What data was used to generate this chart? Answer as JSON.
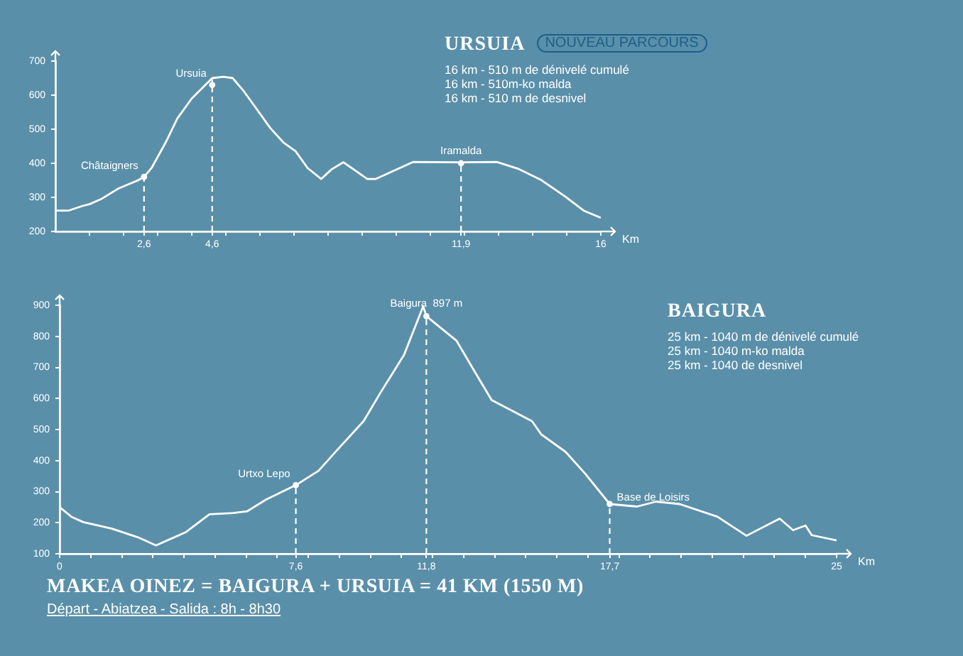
{
  "chart_data": [
    {
      "type": "line",
      "title": "URSUIA",
      "subtitle": "NOUVEAU PARCOURS",
      "xlabel": "Km",
      "annotations": [
        "16 km - 510 m de dénivelé cumulé",
        "16 km - 510m-ko malda",
        "16 km - 510 m de desnivel",
        {
          "text": "Châtaigners",
          "x": 2.6,
          "y": 360
        },
        {
          "text": "Ursuia",
          "x": 4.6,
          "y": 630
        },
        {
          "text": "Iramalda",
          "x": 11.9,
          "y": 400
        }
      ],
      "series": [
        {
          "color": "#ffffff",
          "x": [
            0,
            0.38,
            0.8,
            1.0,
            1.36,
            1.85,
            2.4,
            2.6,
            2.82,
            3.24,
            3.58,
            4.0,
            4.6,
            4.93,
            5.2,
            5.5,
            5.9,
            6.3,
            6.7,
            7.05,
            7.4,
            7.8,
            8.1,
            8.45,
            8.75,
            9.15,
            9.4,
            9.95,
            10.5,
            11.9,
            12.95,
            13.6,
            14.25,
            14.95,
            15.5,
            16
          ],
          "values": [
            261,
            261,
            275,
            280,
            296,
            326,
            349,
            360,
            386,
            462,
            532,
            590,
            650,
            654,
            650,
            615,
            560,
            504,
            460,
            435,
            386,
            354,
            382,
            403,
            382,
            354,
            354,
            379,
            404,
            403,
            404,
            383,
            351,
            303,
            261,
            240
          ]
        }
      ],
      "xlim": [
        0,
        16
      ],
      "ylim": [
        200,
        700
      ],
      "xticks": [
        {
          "value": 1,
          "label": null
        },
        {
          "value": 2,
          "label": null
        },
        {
          "value": 2.6,
          "label": "2,6"
        },
        {
          "value": 3,
          "label": null
        },
        {
          "value": 4,
          "label": null
        },
        {
          "value": 4.6,
          "label": "4,6"
        },
        {
          "value": 5,
          "label": null
        },
        {
          "value": 6,
          "label": null
        },
        {
          "value": 7,
          "label": null
        },
        {
          "value": 8,
          "label": null
        },
        {
          "value": 9,
          "label": null
        },
        {
          "value": 10,
          "label": null
        },
        {
          "value": 11,
          "label": null
        },
        {
          "value": 11.9,
          "label": "11,9"
        },
        {
          "value": 12,
          "label": null
        },
        {
          "value": 13,
          "label": null
        },
        {
          "value": 14,
          "label": null
        },
        {
          "value": 15,
          "label": null
        },
        {
          "value": 16,
          "label": "16"
        }
      ],
      "yticks": [
        200,
        300,
        400,
        500,
        600,
        700
      ],
      "ref_lines": [
        {
          "axis": "x",
          "value": 2.6,
          "line_style": "dashed"
        },
        {
          "axis": "x",
          "value": 4.6,
          "line_style": "dashed"
        },
        {
          "axis": "x",
          "value": 11.9,
          "line_style": "dashed"
        }
      ],
      "marker": "none",
      "grid": false,
      "legend": false
    },
    {
      "type": "line",
      "title": "BAIGURA",
      "xlabel": "Km",
      "annotations": [
        "25 km - 1040 m de dénivelé cumulé",
        "25 km - 1040 m-ko malda",
        "25 km - 1040 de desnivel",
        {
          "text": "Urtxo Lepo",
          "x": 7.6,
          "y": 321
        },
        {
          "text": "Baigura  897 m",
          "x": 11.8,
          "y": 865
        },
        {
          "text": "Base de Loisirs",
          "x": 17.7,
          "y": 260
        }
      ],
      "series": [
        {
          "color": "#ffffff",
          "x": [
            0,
            0.38,
            0.76,
            1.68,
            2.52,
            3.1,
            4.05,
            4.82,
            5.58,
            6.04,
            6.65,
            7.6,
            8.33,
            8.94,
            9.78,
            10.32,
            11.08,
            11.7,
            11.8,
            12.77,
            13.4,
            13.9,
            15.2,
            15.5,
            16.28,
            16.9,
            17.7,
            18.58,
            19.19,
            19.95,
            21.17,
            22.1,
            23.17,
            23.6,
            24.0,
            24.2,
            25
          ],
          "values": [
            250,
            219,
            202,
            181,
            153,
            127,
            169,
            227,
            231,
            237,
            275,
            321,
            367,
            435,
            527,
            618,
            740,
            897,
            865,
            786,
            679,
            595,
            527,
            484,
            428,
            359,
            260,
            252,
            268,
            260,
            219,
            158,
            213,
            176,
            191,
            160,
            143
          ]
        }
      ],
      "xlim": [
        0,
        25
      ],
      "ylim": [
        100,
        900
      ],
      "xticks": [
        {
          "value": 0,
          "label": "0"
        },
        {
          "value": 1,
          "label": null
        },
        {
          "value": 2,
          "label": null
        },
        {
          "value": 3,
          "label": null
        },
        {
          "value": 4,
          "label": null
        },
        {
          "value": 5,
          "label": null
        },
        {
          "value": 6,
          "label": null
        },
        {
          "value": 7,
          "label": null
        },
        {
          "value": 7.6,
          "label": "7,6"
        },
        {
          "value": 8,
          "label": null
        },
        {
          "value": 9,
          "label": null
        },
        {
          "value": 10,
          "label": null
        },
        {
          "value": 11,
          "label": null
        },
        {
          "value": 11.8,
          "label": "11,8"
        },
        {
          "value": 12,
          "label": null
        },
        {
          "value": 13,
          "label": null
        },
        {
          "value": 14,
          "label": null
        },
        {
          "value": 15,
          "label": null
        },
        {
          "value": 16,
          "label": null
        },
        {
          "value": 17,
          "label": null
        },
        {
          "value": 17.7,
          "label": "17,7"
        },
        {
          "value": 18,
          "label": null
        },
        {
          "value": 19,
          "label": null
        },
        {
          "value": 20,
          "label": null
        },
        {
          "value": 21,
          "label": null
        },
        {
          "value": 22,
          "label": null
        },
        {
          "value": 23,
          "label": null
        },
        {
          "value": 24,
          "label": null
        },
        {
          "value": 25,
          "label": "25"
        }
      ],
      "yticks": [
        100,
        200,
        300,
        400,
        500,
        600,
        700,
        800,
        900
      ],
      "ref_lines": [
        {
          "axis": "x",
          "value": 7.6,
          "line_style": "dashed"
        },
        {
          "axis": "x",
          "value": 11.8,
          "line_style": "dashed"
        },
        {
          "axis": "x",
          "value": 17.7,
          "line_style": "dashed"
        }
      ],
      "marker": "none",
      "grid": false,
      "legend": false
    },
    {
      "type": "other",
      "title": "MAKEA OINEZ = BAIGURA + URSUIA = 41 KM (1550 M)",
      "annotations": [
        "Départ - Abiatzea - Salida : 8h - 8h30"
      ]
    }
  ]
}
